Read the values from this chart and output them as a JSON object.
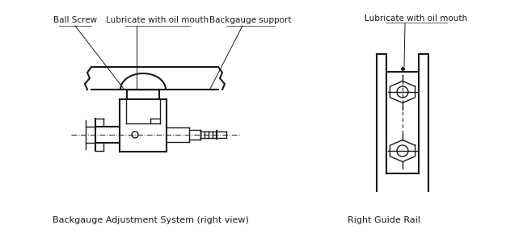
{
  "bg_color": "#ffffff",
  "line_color": "#1a1a1a",
  "label_fontsize": 7.5,
  "caption_fontsize": 8,
  "title1": "Backgauge Adjustment System (right view)",
  "title2": "Right Guide Rail",
  "label_ball_screw": "Ball Screw",
  "label_lubricate1": "Lubricate with oil mouth",
  "label_backgauge": "Backgauge support",
  "label_lubricate2": "Lubricate with oil mouth"
}
